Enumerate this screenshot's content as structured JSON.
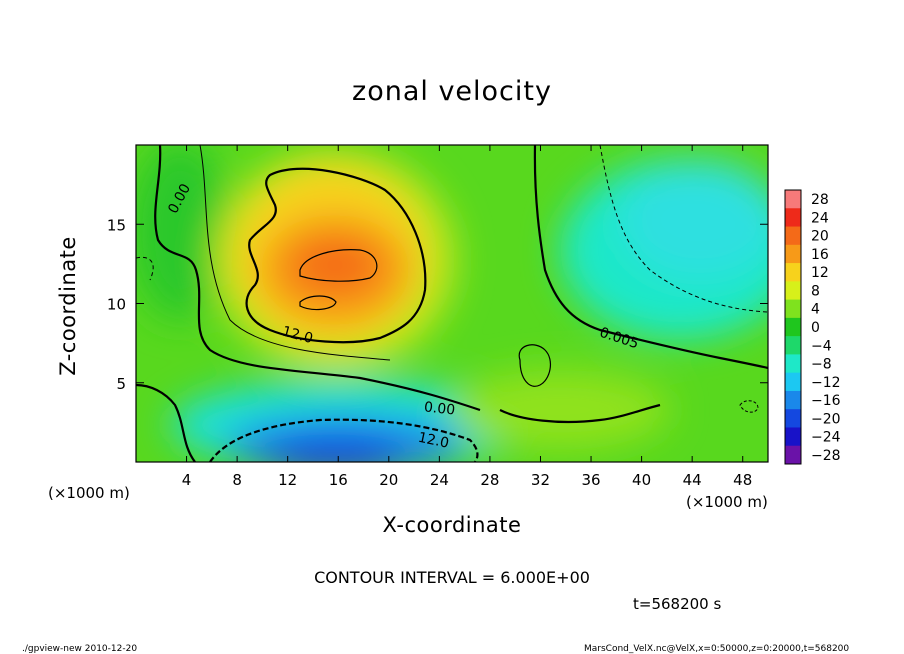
{
  "chart_data": {
    "type": "heatmap",
    "title": "zonal velocity",
    "xlabel": "X-coordinate",
    "ylabel": "Z-coordinate",
    "x_unit": "(×1000 m)",
    "y_unit": "(×1000 m)",
    "xlim": [
      0,
      50
    ],
    "ylim": [
      0,
      20
    ],
    "x_ticks": [
      4,
      8,
      12,
      16,
      20,
      24,
      28,
      32,
      36,
      40,
      44,
      48
    ],
    "y_ticks": [
      5,
      10,
      15
    ],
    "colorbar": {
      "levels": [
        28,
        24,
        20,
        16,
        12,
        8,
        4,
        0,
        -4,
        -8,
        -12,
        -16,
        -20,
        -24,
        -28
      ],
      "colors": [
        "#f77a7a",
        "#ee2a1a",
        "#f46a18",
        "#f79a18",
        "#f7d21c",
        "#d7f01a",
        "#7fe21e",
        "#1fc61e",
        "#1ed86a",
        "#1ee8c8",
        "#1cc8f2",
        "#1a88ea",
        "#1448e0",
        "#1812c8",
        "#6a12a8"
      ]
    },
    "contour_labels": [
      "0.00",
      "12.0",
      "0.00",
      "12.0",
      "0.005"
    ],
    "contour_interval": "CONTOUR INTERVAL = 6.000E+00",
    "time": "t=568200 s",
    "fields": [
      {
        "x": 15,
        "y": 12,
        "value": 21
      },
      {
        "x": 14,
        "y": 10,
        "value": 18
      },
      {
        "x": 16,
        "y": 17,
        "value": 14
      },
      {
        "x": 15,
        "y": 1.5,
        "value": -18
      },
      {
        "x": 46,
        "y": 13,
        "value": -7
      },
      {
        "x": 5,
        "y": 15,
        "value": 5
      },
      {
        "x": 30,
        "y": 6,
        "value": 3
      }
    ]
  },
  "footer": {
    "left": "./gpview-new  2010-12-20",
    "right": "MarsCond_VelX.nc@VelX,x=0:50000,z=0:20000,t=568200"
  }
}
